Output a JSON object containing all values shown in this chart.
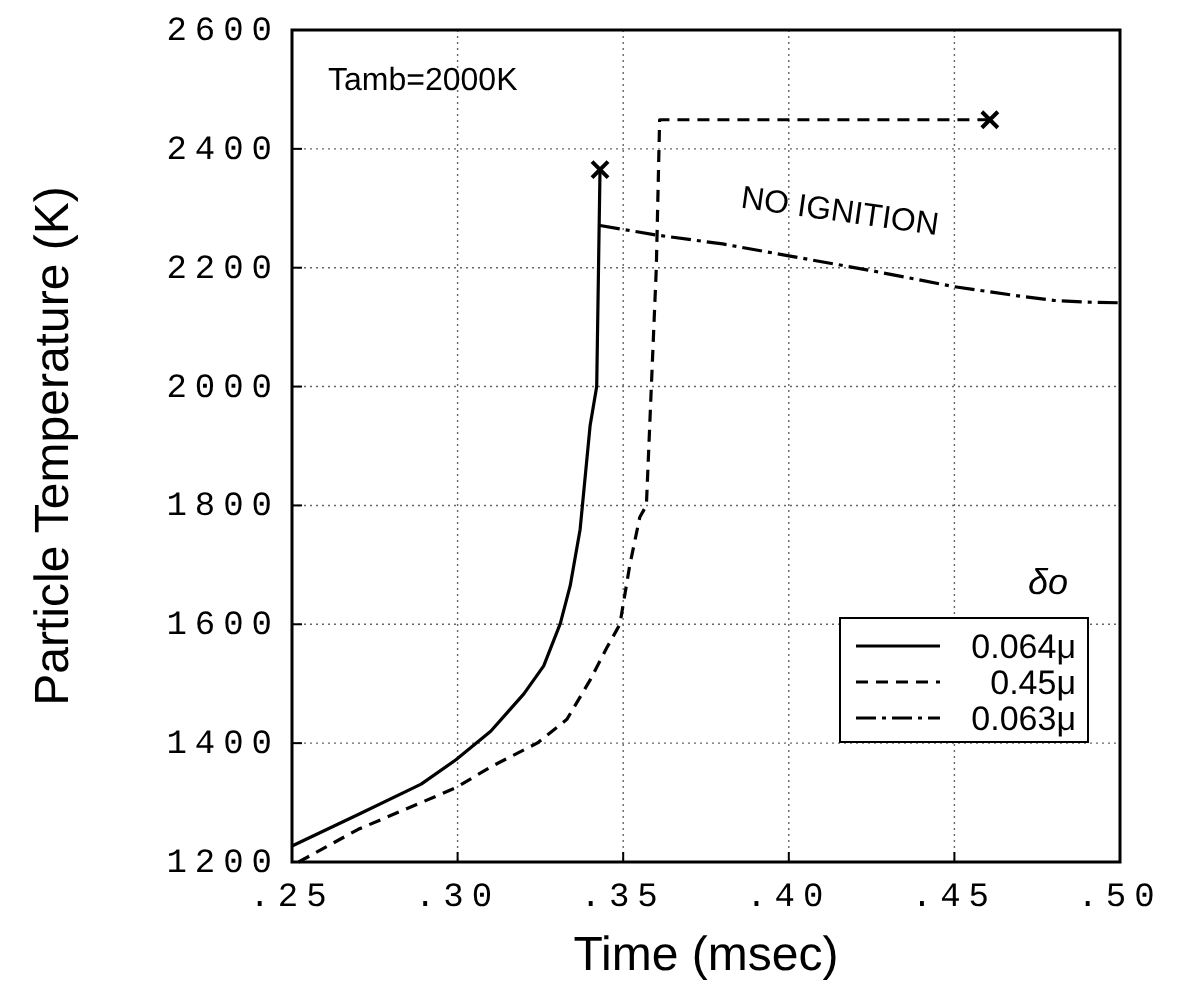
{
  "chart_data": {
    "type": "line",
    "xlabel": "Time  (msec)",
    "ylabel": "Particle Temperature  (K)",
    "legend_title": "δo",
    "legend": "bottom right",
    "grid": true,
    "xlim": [
      0.25,
      0.5
    ],
    "xticks": [
      {
        "value": 0.25,
        "label": ".25"
      },
      {
        "value": 0.3,
        "label": ".30"
      },
      {
        "value": 0.35,
        "label": ".35"
      },
      {
        "value": 0.4,
        "label": ".40"
      },
      {
        "value": 0.45,
        "label": ".45"
      },
      {
        "value": 0.5,
        "label": ".50"
      }
    ],
    "ylim": [
      1200,
      2600
    ],
    "yticks": [
      1200,
      1400,
      1600,
      1800,
      2000,
      2200,
      2400,
      2600
    ],
    "annotations": [
      "Tamb=2000K",
      "NO IGNITION"
    ],
    "series": [
      {
        "name": "0.064μ",
        "color": "#000000",
        "line_style": "solid",
        "x": [
          0.25,
          0.27,
          0.289,
          0.2995,
          0.31,
          0.32,
          0.326,
          0.331,
          0.334,
          0.337,
          0.34,
          0.342,
          0.343
        ],
        "values": [
          1227,
          1280,
          1331,
          1372,
          1420,
          1483,
          1530,
          1601,
          1665,
          1760,
          1934,
          2000,
          2365
        ]
      },
      {
        "name": "0.45μ",
        "color": "#000000",
        "line_style": "dashed",
        "x": [
          0.252,
          0.27,
          0.2995,
          0.31,
          0.324,
          0.333,
          0.34,
          0.345,
          0.349,
          0.352,
          0.355,
          0.357,
          0.36,
          0.361,
          0.4607
        ],
        "values": [
          1200,
          1255,
          1325,
          1360,
          1400,
          1440,
          1506,
          1560,
          1600,
          1700,
          1780,
          1800,
          2200,
          2449,
          2449
        ]
      },
      {
        "name": "0.063μ",
        "color": "#000000",
        "line_style": "dashdot",
        "x": [
          0.343,
          0.36,
          0.38,
          0.4,
          0.425,
          0.45,
          0.47,
          0.48,
          0.49,
          0.5
        ],
        "values": [
          2271,
          2255,
          2240,
          2220,
          2195,
          2168,
          2152,
          2145,
          2142,
          2141
        ]
      },
      {
        "type": "scatter",
        "marker": "cross",
        "color": "#000000",
        "x": [
          0.343,
          0.4607
        ],
        "values": [
          2365,
          2449
        ]
      }
    ]
  }
}
